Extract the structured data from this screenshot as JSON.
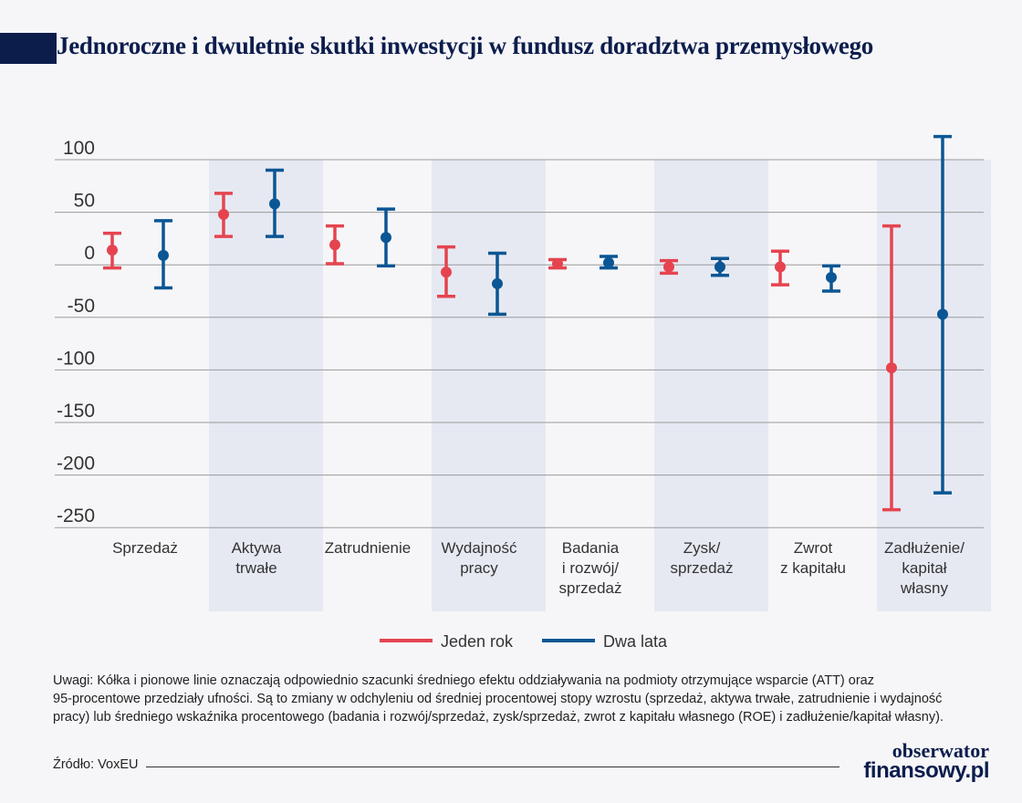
{
  "title": "Jednoroczne i dwuletnie skutki inwestycji w fundusz doradztwa przemysłowego",
  "chart_data": {
    "type": "errorbar",
    "title": "Jednoroczne i dwuletnie skutki inwestycji w fundusz doradztwa przemysłowego",
    "y_ticks": [
      "100",
      "50",
      "0",
      "-50",
      "-100",
      "-150",
      "-200",
      "-250"
    ],
    "y_tick_values": [
      100,
      50,
      0,
      -50,
      -100,
      -150,
      -200,
      -250
    ],
    "ylim": [
      -250,
      100
    ],
    "grid": true,
    "categories": [
      [
        "Sprzedaż"
      ],
      [
        "Aktywa",
        "trwałe"
      ],
      [
        "Zatrudnienie"
      ],
      [
        "Wydajność",
        "pracy"
      ],
      [
        "Badania",
        "i rozwój/",
        "sprzedaż"
      ],
      [
        "Zysk/",
        "sprzedaż"
      ],
      [
        "Zwrot",
        "z kapitału"
      ],
      [
        "Zadłużenie/",
        "kapitał",
        "własny"
      ]
    ],
    "series": [
      {
        "name": "Jeden rok",
        "color": "#e5444f",
        "points": [
          {
            "value": 14,
            "low": -3,
            "high": 30
          },
          {
            "value": 48,
            "low": 27,
            "high": 68
          },
          {
            "value": 19,
            "low": 1,
            "high": 37
          },
          {
            "value": -7,
            "low": -30,
            "high": 17
          },
          {
            "value": 1,
            "low": -3,
            "high": 5
          },
          {
            "value": -2,
            "low": -8,
            "high": 4
          },
          {
            "value": -2,
            "low": -19,
            "high": 13
          },
          {
            "value": -98,
            "low": -233,
            "high": 37
          }
        ]
      },
      {
        "name": "Dwa lata",
        "color": "#0b5694",
        "points": [
          {
            "value": 9,
            "low": -22,
            "high": 42
          },
          {
            "value": 58,
            "low": 27,
            "high": 90
          },
          {
            "value": 26,
            "low": -1,
            "high": 53
          },
          {
            "value": -18,
            "low": -47,
            "high": 11
          },
          {
            "value": 2,
            "low": -3,
            "high": 8
          },
          {
            "value": -2,
            "low": -10,
            "high": 6
          },
          {
            "value": -12,
            "low": -25,
            "high": -1
          },
          {
            "value": -47,
            "low": -217,
            "high": 122
          }
        ]
      }
    ],
    "legend": "bottom-center",
    "shaded_categories": [
      1,
      3,
      5,
      7
    ]
  },
  "notes": [
    "Uwagi: Kółka i pionowe linie oznaczają odpowiednio szacunki średniego efektu oddziaływania na podmioty otrzymujące wsparcie (ATT) oraz",
    "95-procentowe przedziały ufności. Są to zmiany w odchyleniu od średniej procentowej stopy wzrostu (sprzedaż, aktywa trwałe, zatrudnienie i wydajność",
    "pracy) lub średniego wskaźnika procentowego (badania i rozwój/sprzedaż, zysk/sprzedaż, zwrot z kapitału własnego (ROE) i zadłużenie/kapitał własny)."
  ],
  "source": "Źródło: VoxEU",
  "logo": {
    "line1": "obserwator",
    "line2": "finansowy.pl"
  },
  "colors": {
    "navy": "#0c1d4c",
    "shade": "#e6e9f2",
    "grid": "#9a9a9a"
  }
}
